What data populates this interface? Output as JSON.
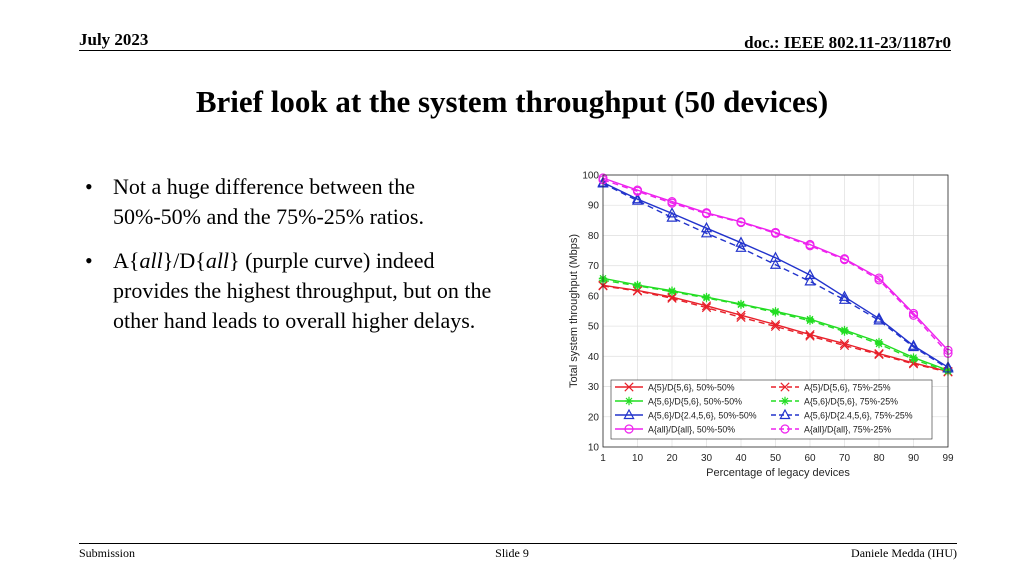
{
  "header": {
    "date": "July 2023",
    "doc": "doc.: IEEE 802.11-23/1187r0"
  },
  "title": "Brief look at the system throughput (50 devices)",
  "bullets": {
    "b1": "Not a huge difference between the 50%-50% and the 75%-25% ratios.",
    "b2": {
      "p1": "A{",
      "p2": "all",
      "p3": "}/D{",
      "p4": "all",
      "p5": "} (purple curve) indeed provides the highest throughput, but on the other hand leads to overall higher delays."
    }
  },
  "footer": {
    "left": "Submission",
    "center": "Slide 9",
    "right": "Daniele Medda (IHU)"
  },
  "chart_data": {
    "type": "line",
    "xlabel": "Percentage of legacy devices",
    "ylabel": "Total system throughput (Mbps)",
    "categories": [
      "1",
      "10",
      "20",
      "30",
      "40",
      "50",
      "60",
      "70",
      "80",
      "90",
      "99"
    ],
    "x": [
      1,
      10,
      20,
      30,
      40,
      50,
      60,
      70,
      80,
      90,
      99
    ],
    "ylim": [
      10,
      100
    ],
    "yticks": [
      10,
      20,
      30,
      40,
      50,
      60,
      70,
      80,
      90,
      100
    ],
    "grid": true,
    "legend_position": "bottom-left",
    "series": [
      {
        "name": "A{5}/D{5,6}, 50%-50%",
        "color": "#e8202a",
        "dash": "solid",
        "marker": "x",
        "values": [
          63.5,
          61.8,
          59.6,
          56.7,
          53.6,
          50.5,
          47.2,
          44.2,
          40.9,
          37.8,
          35.0
        ]
      },
      {
        "name": "A{5,6}/D{5,6}, 50%-50%",
        "color": "#22dd22",
        "dash": "solid",
        "marker": "star",
        "values": [
          65.8,
          63.6,
          61.7,
          59.6,
          57.3,
          54.9,
          52.3,
          48.7,
          44.7,
          39.6,
          35.4
        ]
      },
      {
        "name": "A{5,6}/D{2.4,5,6}, 50%-50%",
        "color": "#2233cc",
        "dash": "solid",
        "marker": "triangle",
        "values": [
          97.5,
          92.0,
          87.3,
          82.4,
          77.6,
          72.6,
          66.9,
          59.7,
          52.5,
          43.5,
          36.4
        ]
      },
      {
        "name": "A{all}/D{all}, 50%-50%",
        "color": "#ee22ee",
        "dash": "solid",
        "marker": "circle",
        "values": [
          99.0,
          95.0,
          91.2,
          87.5,
          84.5,
          81.0,
          77.0,
          72.3,
          65.9,
          54.2,
          42.0
        ]
      },
      {
        "name": "A{5}/D{5,6}, 75%-25%",
        "color": "#e8202a",
        "dash": "dashed",
        "marker": "x",
        "values": [
          63.3,
          61.6,
          59.2,
          56.1,
          52.9,
          49.9,
          46.7,
          43.6,
          40.6,
          37.5,
          34.8
        ]
      },
      {
        "name": "A{5,6}/D{5,6}, 75%-25%",
        "color": "#22dd22",
        "dash": "dashed",
        "marker": "star",
        "values": [
          65.2,
          63.3,
          61.4,
          59.3,
          57.1,
          54.5,
          51.8,
          48.2,
          44.1,
          39.0,
          35.0
        ]
      },
      {
        "name": "A{5,6}/D{2.4,5,6}, 75%-25%",
        "color": "#2233cc",
        "dash": "dashed",
        "marker": "triangle",
        "values": [
          97.2,
          91.5,
          85.9,
          80.7,
          75.9,
          70.3,
          64.8,
          58.7,
          51.9,
          43.1,
          36.0
        ]
      },
      {
        "name": "A{all}/D{all}, 75%-25%",
        "color": "#ee22ee",
        "dash": "dashed",
        "marker": "circle",
        "values": [
          98.4,
          94.6,
          90.7,
          87.2,
          84.3,
          80.7,
          76.6,
          72.0,
          65.3,
          53.6,
          41.0
        ]
      }
    ]
  }
}
